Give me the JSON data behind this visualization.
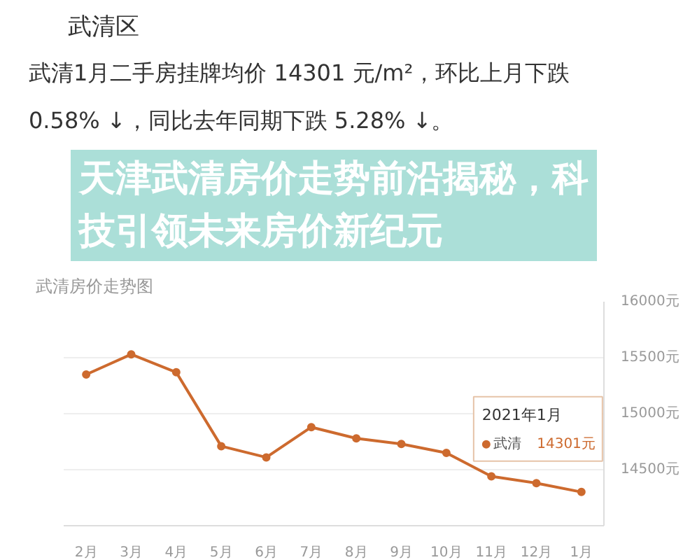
{
  "chart_data": {
    "type": "line",
    "title": "天津武清房价走势前沿揭秘，科技引领未来房价新纪元",
    "subtitle": "武清房价走势图",
    "annotations": [
      "武清区",
      "武清1月二手房挂牌均价 14301 元/m²，环比上月下跌 0.58% ↓，同比去年同期下跌 5.28% ↓。",
      "2021年1月"
    ],
    "categories": [
      "2月",
      "3月",
      "4月",
      "5月",
      "6月",
      "7月",
      "8月",
      "9月",
      "10月",
      "11月",
      "12月",
      "1月"
    ],
    "series": [
      {
        "name": "武清",
        "color": "#cd6a2e",
        "values": [
          15350,
          15530,
          15370,
          14710,
          14610,
          14880,
          14780,
          14730,
          14650,
          14440,
          14380,
          14301
        ],
        "value_labels": [
          null,
          null,
          null,
          null,
          null,
          null,
          null,
          null,
          null,
          null,
          null,
          "14301元"
        ]
      }
    ],
    "ylim": [
      14000,
      16000
    ],
    "yticks": [
      {
        "value": 14000,
        "label": null
      },
      {
        "value": 14500,
        "label": "14500元"
      },
      {
        "value": 15000,
        "label": "15000元"
      },
      {
        "value": 15500,
        "label": "15500元"
      },
      {
        "value": 16000,
        "label": "16000元"
      }
    ],
    "grid": "y",
    "marker": "circle"
  }
}
